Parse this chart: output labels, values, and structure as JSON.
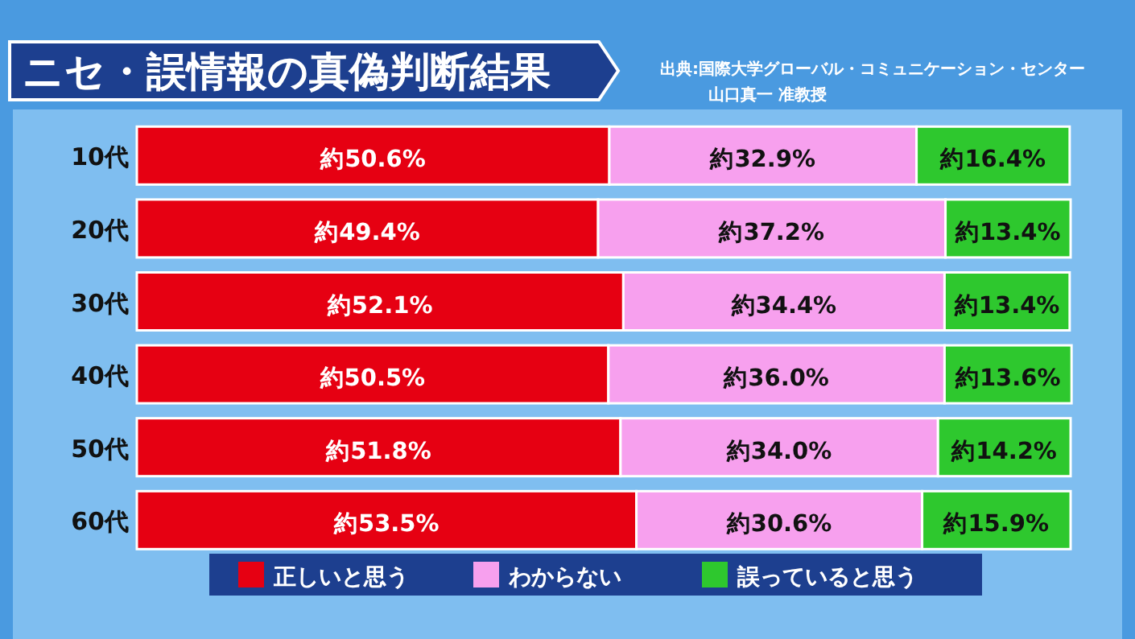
{
  "chart_data": {
    "type": "bar",
    "orientation": "horizontal",
    "stacked": true,
    "title": "ニセ・誤情報の真偽判断結果",
    "annotations": [
      "出典:国際大学グローバル・コミュニケーション・センター",
      "山口真一 准教授"
    ],
    "categories": [
      "10代",
      "20代",
      "30代",
      "40代",
      "50代",
      "60代"
    ],
    "legend": "bottom",
    "xlim": [
      0,
      100
    ],
    "series": [
      {
        "name": "正しいと思う",
        "color": "#e60012",
        "values": [
          50.6,
          49.4,
          52.1,
          50.5,
          51.8,
          53.5
        ],
        "value_labels": [
          "約50.6%",
          "約49.4%",
          "約52.1%",
          "約50.5%",
          "約51.8%",
          "約53.5%"
        ]
      },
      {
        "name": "わからない",
        "color": "#f7a0ee",
        "values": [
          32.9,
          37.2,
          34.4,
          36.0,
          34.0,
          30.6
        ],
        "value_labels": [
          "約32.9%",
          "約37.2%",
          "約34.4%",
          "約36.0%",
          "約34.0%",
          "約30.6%"
        ]
      },
      {
        "name": "誤っていると思う",
        "color": "#2ec82e",
        "values": [
          16.4,
          13.4,
          13.4,
          13.6,
          14.2,
          15.9
        ],
        "value_labels": [
          "約16.4%",
          "約13.4%",
          "約13.4%",
          "約13.6%",
          "約14.2%",
          "約15.9%"
        ]
      }
    ]
  }
}
